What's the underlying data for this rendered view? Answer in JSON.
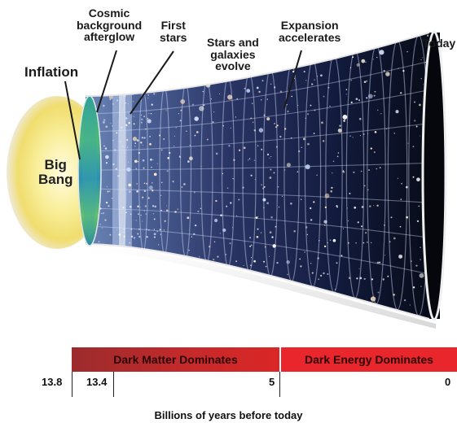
{
  "labels": {
    "inflation": "Inflation",
    "big_bang_line1": "Big",
    "big_bang_line2": "Bang",
    "cmb_line1": "Cosmic",
    "cmb_line2": "background",
    "cmb_line3": "afterglow",
    "first_stars_line1": "First",
    "first_stars_line2": "stars",
    "stars_galaxies_line1": "Stars and",
    "stars_galaxies_line2": "galaxies",
    "stars_galaxies_line3": "evolve",
    "expansion_line1": "Expansion",
    "expansion_line2": "accelerates",
    "today": "Today"
  },
  "timeline": {
    "dark_matter": "Dark Matter Dominates",
    "dark_energy": "Dark Energy Dominates",
    "ticks": [
      "13.8",
      "13.4",
      "5",
      "0"
    ],
    "axis_title": "Billions of years before today"
  },
  "colors": {
    "dark_matter_start": "#9a2a2a",
    "dark_matter_end": "#d62424",
    "dark_energy": "#e8262b",
    "big_bang_glow": "#f6e27a",
    "cmb": "#2fa0a8"
  }
}
